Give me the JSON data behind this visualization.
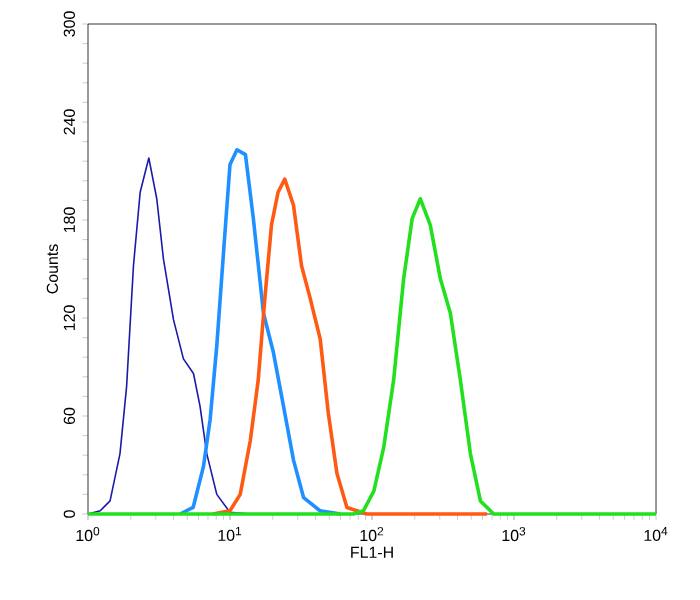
{
  "chart_data": {
    "type": "line",
    "xlabel": "FL1-H",
    "ylabel": "Counts",
    "log": "x",
    "marker": "none",
    "line_style": "solid",
    "xlim": [
      1,
      10000
    ],
    "ylim": [
      0,
      300
    ],
    "xticks": [
      {
        "value": 1,
        "label": "10$^{0}$"
      },
      {
        "value": 10,
        "label": "10$^{1}$"
      },
      {
        "value": 100,
        "label": "10$^{2}$"
      },
      {
        "value": 1000,
        "label": "10$^{3}$"
      },
      {
        "value": 10000,
        "label": "10$^{4}$"
      }
    ],
    "yticks": [
      0,
      60,
      120,
      180,
      240,
      300
    ],
    "series": [
      {
        "color": "#1a1aa8",
        "x": [
          1.0,
          1.22,
          1.43,
          1.68,
          1.87,
          2.09,
          2.33,
          2.68,
          3.05,
          3.4,
          4.0,
          4.7,
          5.53,
          6.15,
          6.86,
          8.07,
          10,
          14
        ],
        "values": [
          0,
          2,
          8,
          37,
          78,
          152,
          197,
          218,
          193,
          156,
          119,
          95,
          86,
          66,
          37,
          12,
          1,
          0
        ]
      },
      {
        "color": "#1e90ff",
        "x": [
          4.45,
          5.5,
          6.5,
          7.25,
          8.07,
          9.0,
          10,
          11.2,
          12.85,
          14.6,
          17.2,
          20.2,
          23.8,
          28.0,
          33,
          43,
          60
        ],
        "values": [
          0,
          4,
          29,
          58,
          103,
          160,
          214,
          223,
          220,
          181,
          123,
          99,
          66,
          33,
          10,
          2,
          0
        ]
      },
      {
        "color": "#ff5a14",
        "x": [
          7.6,
          10,
          11.8,
          13.9,
          15.8,
          17.6,
          19.6,
          21.8,
          24.3,
          28,
          31.9,
          36.7,
          43.2,
          49.2,
          56.6,
          66.6,
          92,
          646
        ],
        "values": [
          0,
          2,
          12,
          45,
          82,
          132,
          177,
          197,
          205,
          189,
          152,
          132,
          107,
          62,
          25,
          4,
          0,
          0
        ]
      },
      {
        "color": "#22e01e",
        "x": [
          1,
          74,
          87,
          103,
          121,
          142,
          167,
          192,
          219,
          257,
          303,
          356,
          419,
          493,
          580,
          719,
          10000
        ],
        "values": [
          0,
          0,
          2,
          14,
          41,
          82,
          144,
          181,
          193,
          177,
          144,
          123,
          82,
          37,
          8,
          0,
          0
        ]
      }
    ]
  }
}
